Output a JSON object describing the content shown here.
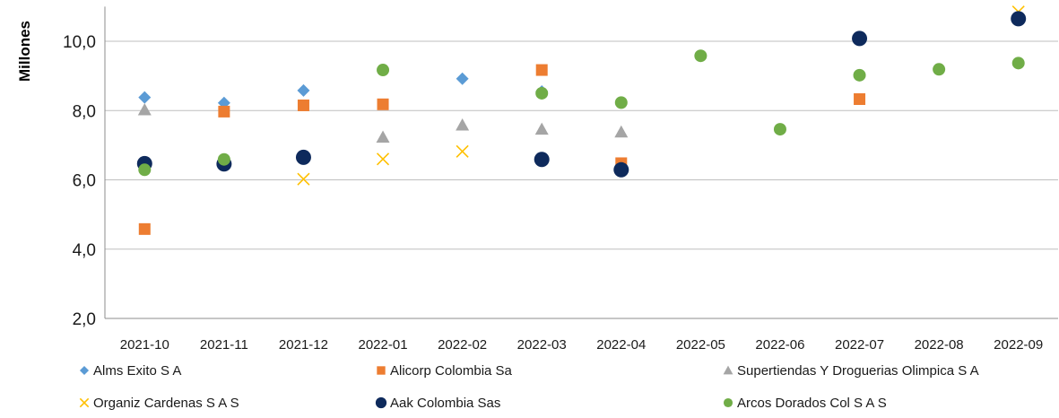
{
  "chart_data": {
    "type": "scatter",
    "ylabel": "Millones",
    "ylim": [
      2.0,
      11.0
    ],
    "yticks": [
      "2,0",
      "4,0",
      "6,0",
      "8,0",
      "10,0"
    ],
    "ytick_values": [
      2,
      4,
      6,
      8,
      10
    ],
    "grid": "horizontal",
    "legend_position": "bottom",
    "categories": [
      "2021-10",
      "2021-11",
      "2021-12",
      "2022-01",
      "2022-02",
      "2022-03",
      "2022-04",
      "2022-05",
      "2022-06",
      "2022-07",
      "2022-08",
      "2022-09"
    ],
    "series": [
      {
        "name": "Alms Exito S A",
        "marker": "diamond",
        "color": "#5B9BD5",
        "values": [
          8.38,
          8.22,
          8.58,
          null,
          8.92,
          8.55,
          null,
          null,
          null,
          null,
          null,
          null
        ]
      },
      {
        "name": "Alicorp Colombia Sa",
        "marker": "square",
        "color": "#ED7D31",
        "values": [
          4.58,
          7.97,
          8.15,
          8.18,
          null,
          9.17,
          6.48,
          null,
          null,
          8.33,
          null,
          null
        ]
      },
      {
        "name": "Supertiendas Y Droguerias Olimpica S A",
        "marker": "triangle",
        "color": "#A5A5A5",
        "values": [
          8.02,
          null,
          null,
          7.23,
          7.58,
          7.46,
          7.38,
          null,
          null,
          null,
          null,
          null
        ]
      },
      {
        "name": "Organiz Cardenas S A S",
        "marker": "x",
        "color": "#FFC000",
        "values": [
          null,
          null,
          6.02,
          6.6,
          6.82,
          null,
          null,
          null,
          null,
          null,
          null,
          10.85
        ]
      },
      {
        "name": "Aak Colombia Sas",
        "marker": "circle",
        "color": "#0E2A5C",
        "values": [
          6.47,
          6.46,
          6.65,
          null,
          null,
          6.59,
          6.29,
          null,
          null,
          10.08,
          null,
          10.65
        ]
      },
      {
        "name": "Arcos Dorados Col S A S",
        "marker": "circle-small",
        "color": "#70AD47",
        "values": [
          6.29,
          6.59,
          null,
          9.17,
          null,
          8.5,
          8.23,
          9.58,
          7.46,
          9.02,
          9.19,
          9.37
        ]
      }
    ]
  }
}
